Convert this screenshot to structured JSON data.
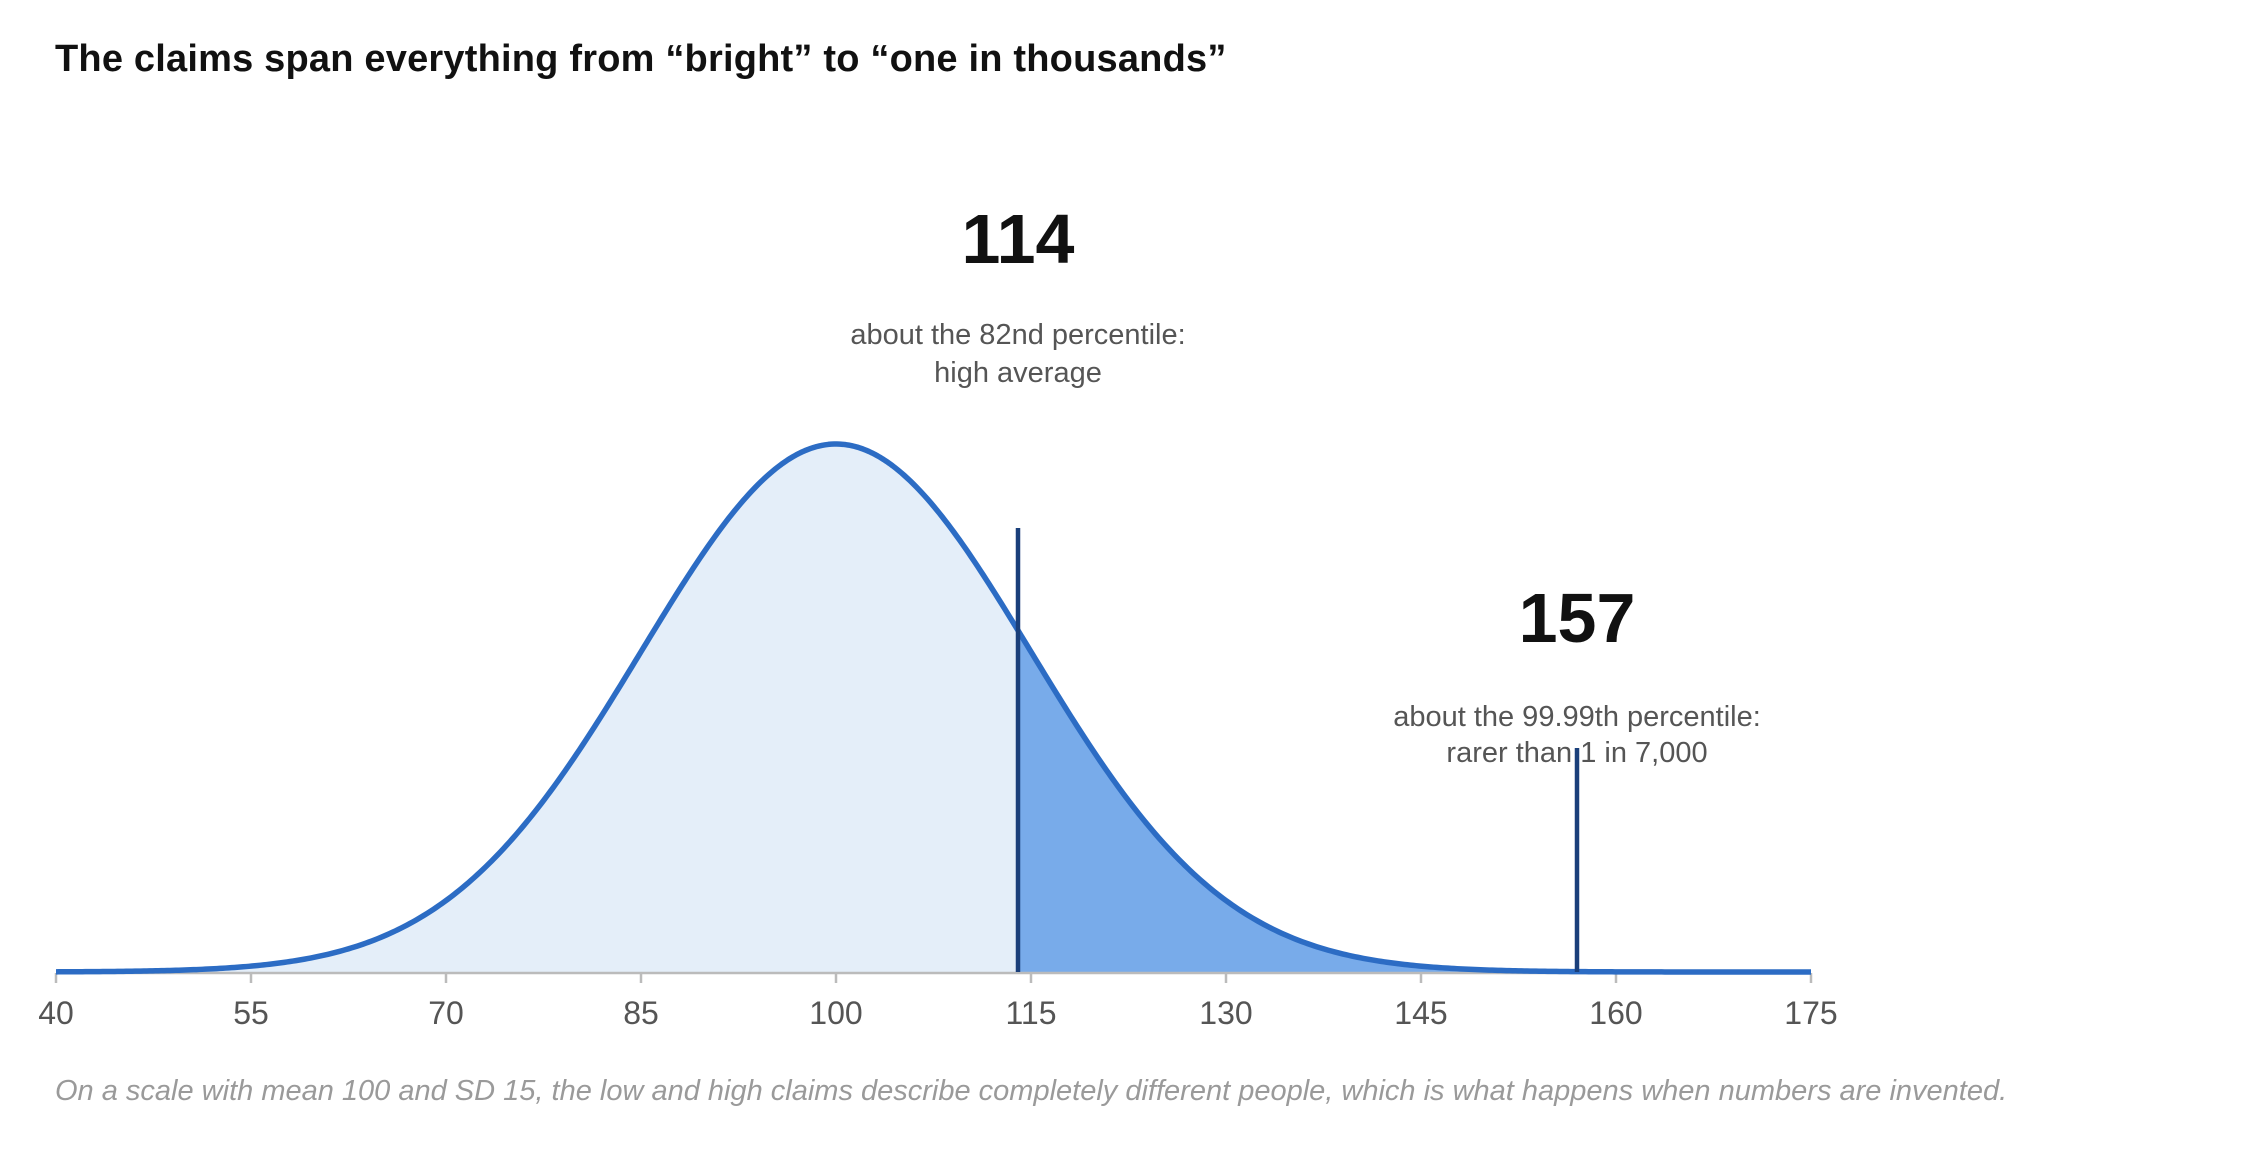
{
  "chart_data": {
    "type": "area",
    "title": "The claims span everything from “bright” to “one in thousands”",
    "caption": "On a scale with mean 100 and SD 15, the low and high claims describe completely different people, which is what happens when numbers are invented.",
    "distribution": {
      "kind": "normal",
      "mean": 100,
      "sd": 15
    },
    "xlim": [
      40,
      175
    ],
    "x_ticks": [
      "40",
      "55",
      "70",
      "85",
      "100",
      "115",
      "130",
      "145",
      "160",
      "175"
    ],
    "shaded_from": 114,
    "grid": false,
    "annotations": [
      {
        "value": 114,
        "label": "114",
        "lines": [
          "about the 82nd percentile:",
          "high average"
        ]
      },
      {
        "value": 157,
        "label": "157",
        "lines": [
          "about the 99.99th percentile:",
          "rarer than 1 in 7,000"
        ]
      }
    ],
    "colors": {
      "curve": "#2c6cc4",
      "fill_light": "#e4eef9",
      "fill_shaded": "#78abea",
      "marker": "#1a3f7a",
      "axis": "#bbbbbb"
    }
  }
}
